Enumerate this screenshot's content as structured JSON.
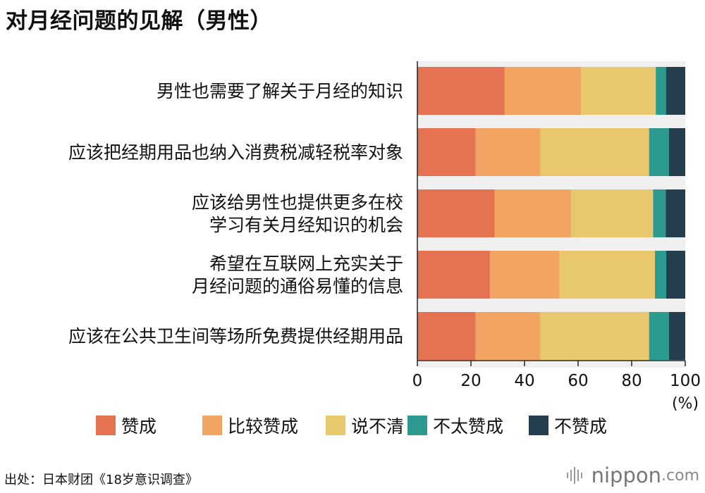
{
  "title": "对月经问题的见解（男性）",
  "source": "出处：日本财团《18岁意识调查》",
  "brand": {
    "name": "nippon",
    "suffix": ".com",
    "icon": "sound-wave-icon"
  },
  "chart_data": {
    "type": "bar",
    "orientation": "horizontal",
    "stacked": true,
    "categories": [
      [
        "男性也需要了解关于月经的知识"
      ],
      [
        "应该把经期用品也纳入消费税减轻税率对象"
      ],
      [
        "应该给男性也提供更多在校",
        "学习有关月经知识的机会"
      ],
      [
        "希望在互联网上充实关于",
        "月经问题的通俗易懂的信息"
      ],
      [
        "应该在公共卫生间等场所免费提供经期用品"
      ]
    ],
    "series": [
      {
        "name": "赞成",
        "color": "#e57352",
        "values": [
          32.6,
          21.7,
          28.9,
          27.1,
          21.7
        ]
      },
      {
        "name": "比较赞成",
        "color": "#f2a563",
        "values": [
          28.5,
          24.2,
          28.5,
          26.0,
          24.2
        ]
      },
      {
        "name": "说不清",
        "color": "#e8c76d",
        "values": [
          27.9,
          40.6,
          30.6,
          35.6,
          40.6
        ]
      },
      {
        "name": "不太赞成",
        "color": "#2c9b8f",
        "values": [
          3.8,
          7.4,
          4.7,
          4.2,
          7.4
        ]
      },
      {
        "name": "不赞成",
        "color": "#263f4f",
        "values": [
          7.2,
          6.1,
          7.3,
          7.1,
          6.1
        ]
      }
    ],
    "xlim": [
      0,
      100
    ],
    "xticks": [
      "0",
      "20",
      "40",
      "60",
      "80",
      "100"
    ],
    "xunit": "(%)",
    "legend_position": "bottom",
    "grid": false
  }
}
